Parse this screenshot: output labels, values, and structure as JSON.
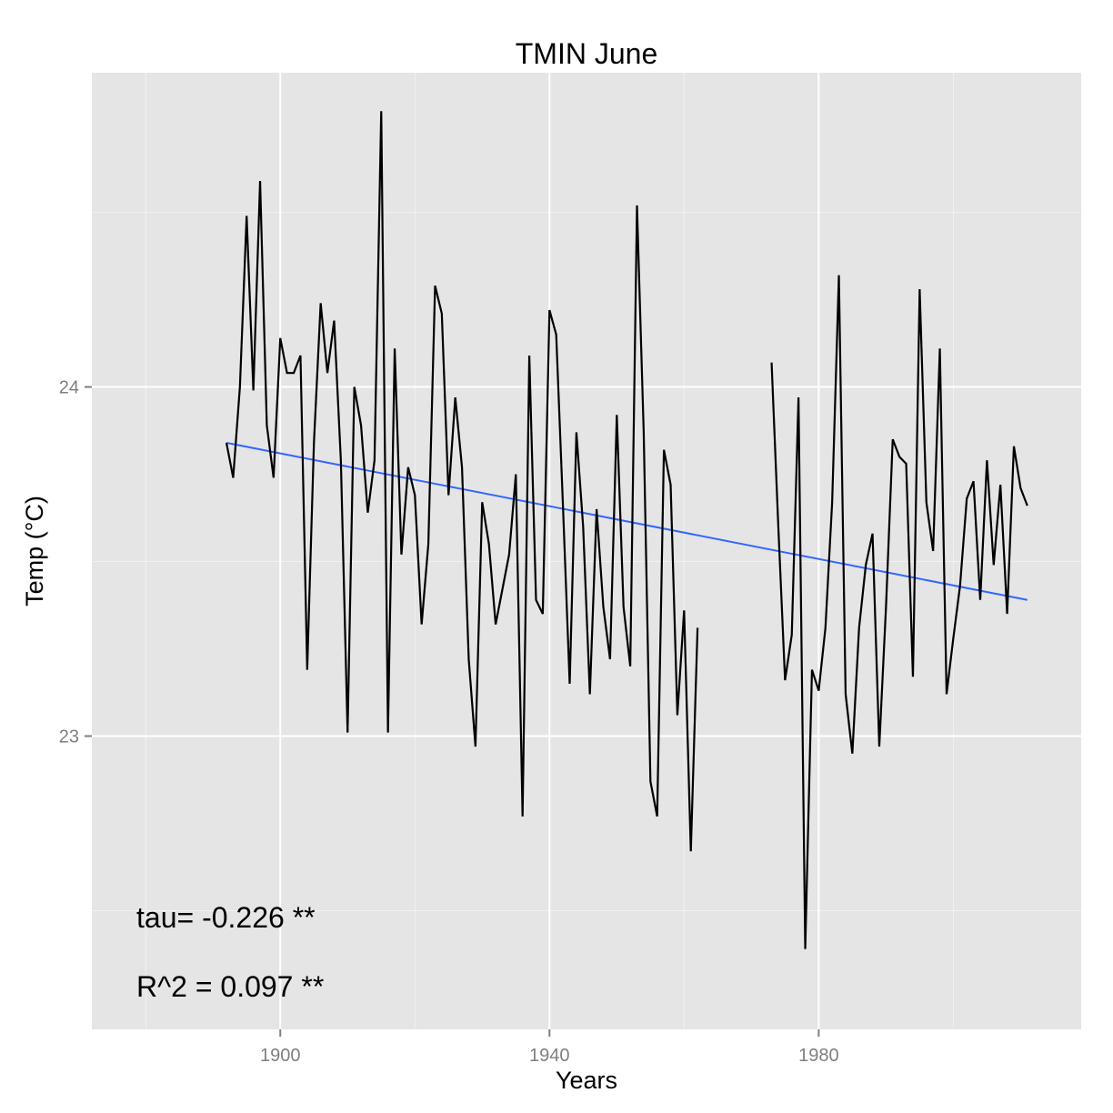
{
  "chart_data": {
    "type": "line",
    "title": "TMIN June",
    "xlabel": "Years",
    "ylabel": "Temp (°C)",
    "xlim": [
      1872,
      2019
    ],
    "ylim": [
      22.16,
      24.9
    ],
    "x_ticks": [
      1900,
      1940,
      1980
    ],
    "y_ticks": [
      23,
      24
    ],
    "grid": true,
    "colors": {
      "panel": "#e5e5e5",
      "line": "#000000",
      "trend": "#3366ff",
      "grid": "#ffffff"
    },
    "series": [
      {
        "values": [
          [
            1892,
            23.84
          ],
          [
            1893,
            23.74
          ],
          [
            1894,
            24.0
          ],
          [
            1895,
            24.49
          ],
          [
            1896,
            23.99
          ],
          [
            1897,
            24.59
          ],
          [
            1898,
            23.89
          ],
          [
            1899,
            23.74
          ],
          [
            1900,
            24.14
          ],
          [
            1901,
            24.04
          ],
          [
            1902,
            24.04
          ],
          [
            1903,
            24.09
          ],
          [
            1904,
            23.19
          ],
          [
            1905,
            23.84
          ],
          [
            1906,
            24.24
          ],
          [
            1907,
            24.04
          ],
          [
            1908,
            24.19
          ],
          [
            1909,
            23.79
          ],
          [
            1910,
            23.01
          ],
          [
            1911,
            24.0
          ],
          [
            1912,
            23.89
          ],
          [
            1913,
            23.64
          ],
          [
            1914,
            23.79
          ],
          [
            1915,
            24.79
          ],
          [
            1916,
            23.01
          ],
          [
            1917,
            24.11
          ],
          [
            1918,
            23.52
          ],
          [
            1919,
            23.77
          ],
          [
            1920,
            23.69
          ],
          [
            1921,
            23.32
          ],
          [
            1922,
            23.55
          ],
          [
            1923,
            24.29
          ],
          [
            1924,
            24.21
          ],
          [
            1925,
            23.69
          ],
          [
            1926,
            23.97
          ],
          [
            1927,
            23.77
          ],
          [
            1928,
            23.22
          ],
          [
            1929,
            22.97
          ],
          [
            1930,
            23.67
          ],
          [
            1931,
            23.55
          ],
          [
            1932,
            23.32
          ],
          [
            1933,
            23.42
          ],
          [
            1934,
            23.52
          ],
          [
            1935,
            23.75
          ],
          [
            1936,
            22.77
          ],
          [
            1937,
            24.09
          ],
          [
            1938,
            23.39
          ],
          [
            1939,
            23.35
          ],
          [
            1940,
            24.22
          ],
          [
            1941,
            24.15
          ],
          [
            1942,
            23.66
          ],
          [
            1943,
            23.15
          ],
          [
            1944,
            23.87
          ],
          [
            1945,
            23.6
          ],
          [
            1946,
            23.12
          ],
          [
            1947,
            23.65
          ],
          [
            1948,
            23.37
          ],
          [
            1949,
            23.22
          ],
          [
            1950,
            23.92
          ],
          [
            1951,
            23.37
          ],
          [
            1952,
            23.2
          ],
          [
            1953,
            24.52
          ],
          [
            1954,
            23.87
          ],
          [
            1955,
            22.87
          ],
          [
            1956,
            22.77
          ],
          [
            1957,
            23.82
          ],
          [
            1958,
            23.72
          ],
          [
            1959,
            23.06
          ],
          [
            1960,
            23.36
          ],
          [
            1961,
            22.67
          ],
          [
            1962,
            23.31
          ],
          null,
          [
            1973,
            24.07
          ],
          [
            1974,
            23.6
          ],
          [
            1975,
            23.16
          ],
          [
            1976,
            23.29
          ],
          [
            1977,
            23.97
          ],
          [
            1978,
            22.39
          ],
          [
            1979,
            23.19
          ],
          [
            1980,
            23.13
          ],
          [
            1981,
            23.31
          ],
          [
            1982,
            23.67
          ],
          [
            1983,
            24.32
          ],
          [
            1984,
            23.12
          ],
          [
            1985,
            22.95
          ],
          [
            1986,
            23.31
          ],
          [
            1987,
            23.49
          ],
          [
            1988,
            23.58
          ],
          [
            1989,
            22.97
          ],
          [
            1990,
            23.37
          ],
          [
            1991,
            23.85
          ],
          [
            1992,
            23.8
          ],
          [
            1993,
            23.78
          ],
          [
            1994,
            23.17
          ],
          [
            1995,
            24.28
          ],
          [
            1996,
            23.67
          ],
          [
            1997,
            23.53
          ],
          [
            1998,
            24.11
          ],
          [
            1999,
            23.12
          ],
          [
            2000,
            23.28
          ],
          [
            2001,
            23.43
          ],
          [
            2002,
            23.68
          ],
          [
            2003,
            23.73
          ],
          [
            2004,
            23.39
          ],
          [
            2005,
            23.79
          ],
          [
            2006,
            23.49
          ],
          [
            2007,
            23.72
          ],
          [
            2008,
            23.35
          ],
          [
            2009,
            23.83
          ],
          [
            2010,
            23.71
          ],
          [
            2011,
            23.66
          ]
        ]
      }
    ],
    "trend": {
      "x": [
        1892,
        2011
      ],
      "y": [
        23.84,
        23.39
      ]
    },
    "annotations": [
      "tau= -0.226 **",
      "R^2 =  0.097 **"
    ]
  }
}
